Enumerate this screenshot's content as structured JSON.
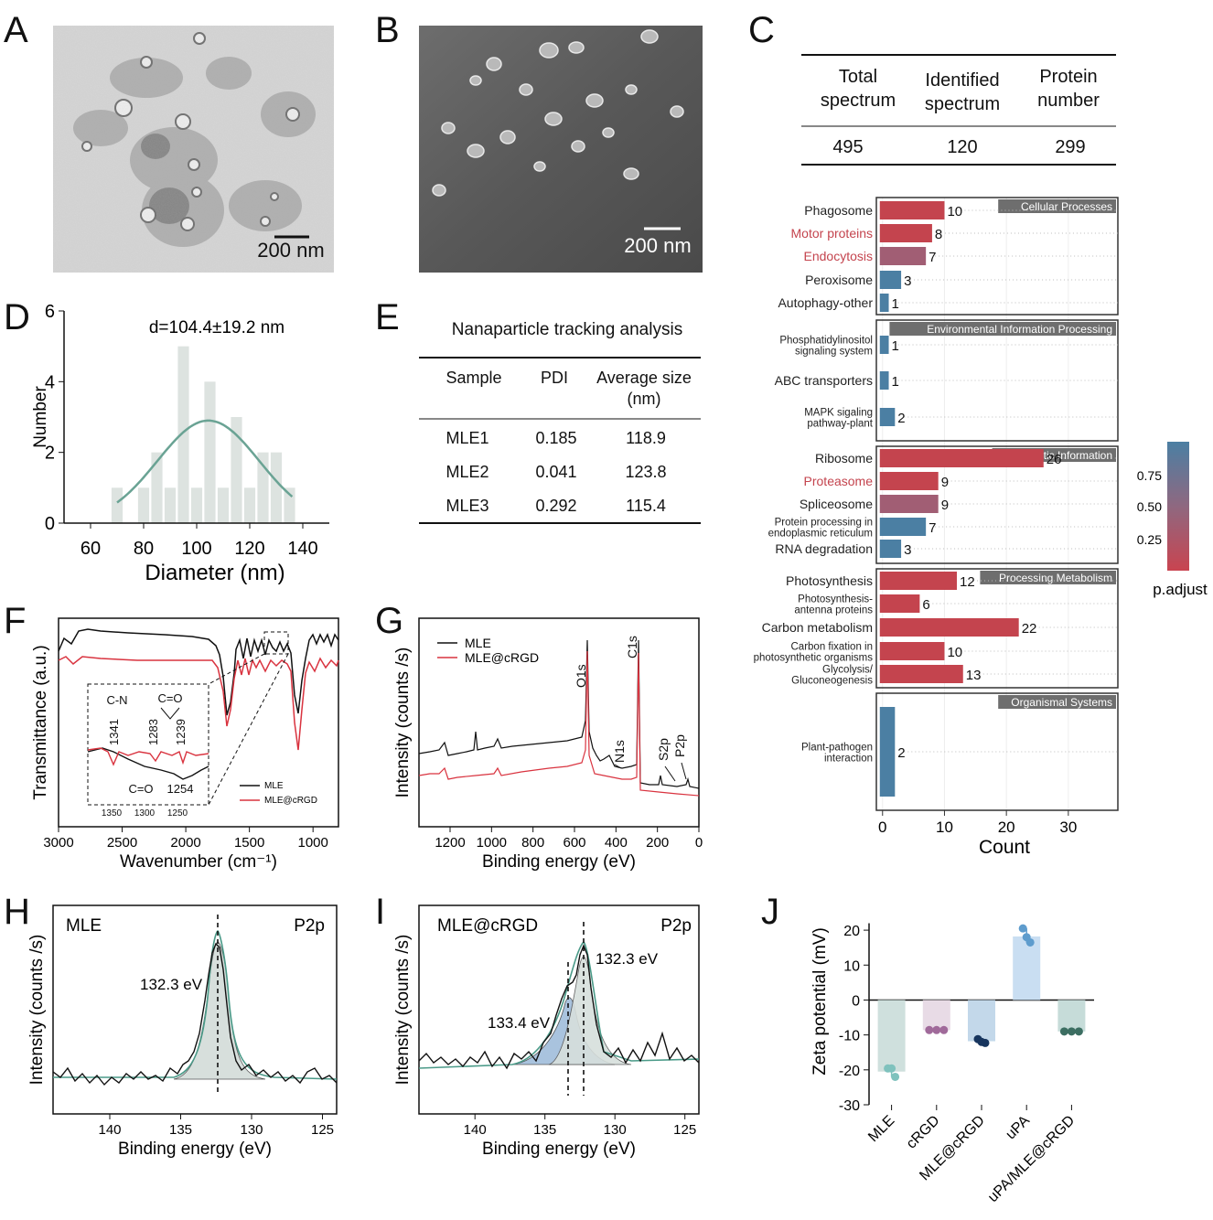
{
  "panels": {
    "A": {
      "letter": "A",
      "scale_label": "200 nm"
    },
    "B": {
      "letter": "B",
      "scale_label": "200 nm"
    },
    "C": {
      "letter": "C",
      "table": {
        "headers": [
          [
            "Total",
            "spectrum"
          ],
          [
            "Identified",
            "spectrum"
          ],
          [
            "Protein",
            "number"
          ]
        ],
        "values": [
          "495",
          "120",
          "299"
        ]
      }
    },
    "D": {
      "letter": "D",
      "annotation": "d=104.4±19.2 nm"
    },
    "E": {
      "letter": "E",
      "title": "Nanaparticle tracking analysis",
      "headers": [
        "Sample",
        "PDI",
        [
          "Average size",
          "(nm)"
        ]
      ],
      "rows": [
        [
          "MLE1",
          "0.185",
          "118.9"
        ],
        [
          "MLE2",
          "0.041",
          "123.8"
        ],
        [
          "MLE3",
          "0.292",
          "115.4"
        ]
      ]
    },
    "F": {
      "letter": "F",
      "inset_labels": {
        "cn": "C-N",
        "co_top": "C=O",
        "co_bottom": "C=O",
        "p1341": "1341",
        "p1283": "1283",
        "p1239": "1239",
        "p1254": "1254",
        "t1350": "1350",
        "t1300": "1300",
        "t1250": "1250"
      },
      "legend": [
        "MLE",
        "MLE@cRGD"
      ]
    },
    "G": {
      "letter": "G",
      "legend": [
        "MLE",
        "MLE@cRGD"
      ],
      "peaks": [
        "O1s",
        "C1s",
        "N1s",
        "S2p",
        "P2p"
      ]
    },
    "H": {
      "letter": "H",
      "sample": "MLE",
      "region": "P2p",
      "peak_label": "132.3 eV"
    },
    "I": {
      "letter": "I",
      "sample": "MLE@cRGD",
      "region": "P2p",
      "peak_label_1": "132.3 eV",
      "peak_label_2": "133.4 eV"
    },
    "J": {
      "letter": "J"
    }
  },
  "colors": {
    "mle": "#111111",
    "mle_crgd": "#d9333f",
    "kegg_red": "#c4444e",
    "kegg_blue": "#4b7fa3",
    "fit": "#4a9a88"
  },
  "chart_data": [
    {
      "panel": "D",
      "type": "bar",
      "xlabel": "Diameter (nm)",
      "ylabel": "Number",
      "xlim": [
        50,
        150
      ],
      "ylim": [
        0,
        6
      ],
      "xticks": [
        60,
        80,
        100,
        120,
        140
      ],
      "yticks": [
        0,
        2,
        4,
        6
      ],
      "x": [
        70,
        75,
        80,
        85,
        90,
        95,
        100,
        105,
        110,
        115,
        120,
        125,
        130,
        135
      ],
      "values": [
        1,
        0,
        1,
        2,
        1,
        5,
        1,
        4,
        1,
        3,
        1,
        2,
        2,
        1
      ],
      "fit": {
        "type": "gaussian",
        "mean": 104.4,
        "sd": 19.2,
        "peak": 2.9
      }
    },
    {
      "panel": "F",
      "type": "line",
      "xlabel": "Wavenumber (cm⁻¹)",
      "ylabel": "Transmittance (a.u.)",
      "xlim": [
        3000,
        800
      ],
      "xticks": [
        3000,
        2500,
        2000,
        1500,
        1000
      ],
      "series": [
        {
          "name": "MLE"
        },
        {
          "name": "MLE@cRGD"
        }
      ]
    },
    {
      "panel": "G",
      "type": "line",
      "xlabel": "Binding energy (eV)",
      "ylabel": "Intensity (counts /s)",
      "xlim": [
        1350,
        0
      ],
      "xticks": [
        1200,
        1000,
        800,
        600,
        400,
        200,
        0
      ],
      "series": [
        {
          "name": "MLE"
        },
        {
          "name": "MLE@cRGD"
        }
      ]
    },
    {
      "panel": "H",
      "type": "line",
      "xlabel": "Binding energy (eV)",
      "ylabel": "Intensity (counts /s)",
      "xlim": [
        144,
        124
      ],
      "xticks": [
        140,
        135,
        130,
        125
      ],
      "peaks_eV": [
        132.3
      ]
    },
    {
      "panel": "I",
      "type": "line",
      "xlabel": "Binding energy (eV)",
      "ylabel": "Intensity (counts /s)",
      "xlim": [
        144,
        124
      ],
      "xticks": [
        140,
        135,
        130,
        125
      ],
      "peaks_eV": [
        132.3,
        133.4
      ]
    },
    {
      "panel": "C",
      "type": "bar",
      "orientation": "horizontal",
      "xlabel": "Count",
      "xticks": [
        0,
        10,
        20,
        30
      ],
      "xlim": [
        -1,
        38
      ],
      "colorbar": {
        "label": "p.adjust",
        "ticks": [
          "0.75",
          "0.50",
          "0.25"
        ]
      },
      "groups": [
        {
          "name": "Cellular Processes",
          "items": [
            {
              "label": "Phagosome",
              "value": 10,
              "p": 0.1
            },
            {
              "label": "Motor proteins",
              "value": 8,
              "p": 0.1,
              "highlight": true
            },
            {
              "label": "Endocytosis",
              "value": 7,
              "p": 0.4,
              "highlight": true
            },
            {
              "label": "Peroxisome",
              "value": 3,
              "p": 0.95
            },
            {
              "label": "Autophagy-other",
              "value": 1,
              "p": 0.95
            }
          ]
        },
        {
          "name": "Environmental Information Processing",
          "items": [
            {
              "label": [
                "Phosphatidylinositol",
                "signaling system"
              ],
              "value": 1,
              "p": 0.95
            },
            {
              "label": "ABC transporters",
              "value": 1,
              "p": 0.95
            },
            {
              "label": [
                "MAPK sigaling",
                "pathway-plant"
              ],
              "value": 2,
              "p": 0.95
            }
          ]
        },
        {
          "name": "Genetic Information",
          "items": [
            {
              "label": "Ribosome",
              "value": 26,
              "p": 0.05
            },
            {
              "label": "Proteasome",
              "value": 9,
              "p": 0.1,
              "highlight": true
            },
            {
              "label": "Spliceosome",
              "value": 9,
              "p": 0.4
            },
            {
              "label": [
                "Protein processing in",
                "endoplasmic reticulum"
              ],
              "value": 7,
              "p": 0.95
            },
            {
              "label": "RNA degradation",
              "value": 3,
              "p": 0.95
            }
          ]
        },
        {
          "name": "Processing Metabolism",
          "items": [
            {
              "label": "Photosynthesis",
              "value": 12,
              "p": 0.05
            },
            {
              "label": [
                "Photosynthesis-",
                "antenna proteins"
              ],
              "value": 6,
              "p": 0.05
            },
            {
              "label": "Carbon metabolism",
              "value": 22,
              "p": 0.05
            },
            {
              "label": [
                "Carbon fixation in",
                "photosynthetic organisms"
              ],
              "value": 10,
              "p": 0.05
            },
            {
              "label": [
                "Glycolysis/",
                "Gluconeogenesis"
              ],
              "value": 13,
              "p": 0.05
            }
          ]
        },
        {
          "name": "Organismal Systems",
          "items": [
            {
              "label": [
                "Plant-pathogen",
                "interaction"
              ],
              "value": 2,
              "p": 0.95
            }
          ]
        }
      ]
    },
    {
      "panel": "J",
      "type": "bar",
      "ylabel": "Zeta potential (mV)",
      "ylim": [
        -30,
        25
      ],
      "yticks": [
        -30,
        -20,
        -10,
        0,
        10,
        20
      ],
      "categories": [
        "MLE",
        "cRGD",
        "MLE@cRGD",
        "uPA",
        "uPA/MLE@cRGD"
      ],
      "values": [
        -20.5,
        -8.6,
        -11.8,
        18.2,
        -9.0
      ],
      "points": [
        [
          -19.6,
          -19.6,
          -22.0
        ],
        [
          -8.6,
          -8.6,
          -8.6
        ],
        [
          -11.2,
          -12.0,
          -12.3
        ],
        [
          20.5,
          18.0,
          16.5
        ],
        [
          -9.0,
          -9.0,
          -9.0
        ]
      ],
      "colors": [
        "#cfe0dd",
        "#e8dbe6",
        "#c3d8ea",
        "#c9def2",
        "#c6dcd9"
      ],
      "dot_colors": [
        "#7fc2bd",
        "#a06a9a",
        "#17355e",
        "#5e9ccd",
        "#3c6e62"
      ]
    }
  ]
}
